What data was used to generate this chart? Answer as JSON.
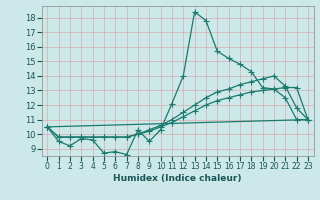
{
  "xlabel": "Humidex (Indice chaleur)",
  "bg_color": "#cce8e8",
  "line_color": "#1a7a6e",
  "xlim": [
    -0.5,
    23.5
  ],
  "ylim": [
    8.5,
    18.8
  ],
  "xticks": [
    0,
    1,
    2,
    3,
    4,
    5,
    6,
    7,
    8,
    9,
    10,
    11,
    12,
    13,
    14,
    15,
    16,
    17,
    18,
    19,
    20,
    21,
    22,
    23
  ],
  "yticks": [
    9,
    10,
    11,
    12,
    13,
    14,
    15,
    16,
    17,
    18
  ],
  "line1_x": [
    0,
    1,
    2,
    3,
    4,
    5,
    6,
    7,
    8,
    9,
    10,
    11,
    12,
    13,
    14,
    15,
    16,
    17,
    18,
    19,
    20,
    21,
    22,
    23
  ],
  "line1_y": [
    10.5,
    9.5,
    9.2,
    9.7,
    9.6,
    8.7,
    8.8,
    8.6,
    10.3,
    9.5,
    10.3,
    12.1,
    14.0,
    18.4,
    17.8,
    15.7,
    15.2,
    14.8,
    14.3,
    13.2,
    13.1,
    12.5,
    11.0,
    11.0
  ],
  "line2_x": [
    0,
    23
  ],
  "line2_y": [
    10.5,
    11.0
  ],
  "line3_x": [
    0,
    1,
    2,
    3,
    4,
    5,
    6,
    7,
    8,
    9,
    10,
    11,
    12,
    13,
    14,
    15,
    16,
    17,
    18,
    19,
    20,
    21,
    22,
    23
  ],
  "line3_y": [
    10.5,
    9.8,
    9.8,
    9.8,
    9.8,
    9.8,
    9.8,
    9.8,
    10.0,
    10.3,
    10.6,
    11.0,
    11.5,
    12.0,
    12.5,
    12.9,
    13.1,
    13.4,
    13.6,
    13.8,
    14.0,
    13.3,
    11.8,
    11.0
  ],
  "line4_x": [
    0,
    1,
    2,
    3,
    4,
    5,
    6,
    7,
    8,
    9,
    10,
    11,
    12,
    13,
    14,
    15,
    16,
    17,
    18,
    19,
    20,
    21,
    22,
    23
  ],
  "line4_y": [
    10.5,
    9.8,
    9.8,
    9.8,
    9.8,
    9.8,
    9.8,
    9.8,
    10.0,
    10.2,
    10.5,
    10.8,
    11.2,
    11.6,
    12.0,
    12.3,
    12.5,
    12.7,
    12.9,
    13.0,
    13.1,
    13.2,
    13.2,
    11.0
  ]
}
